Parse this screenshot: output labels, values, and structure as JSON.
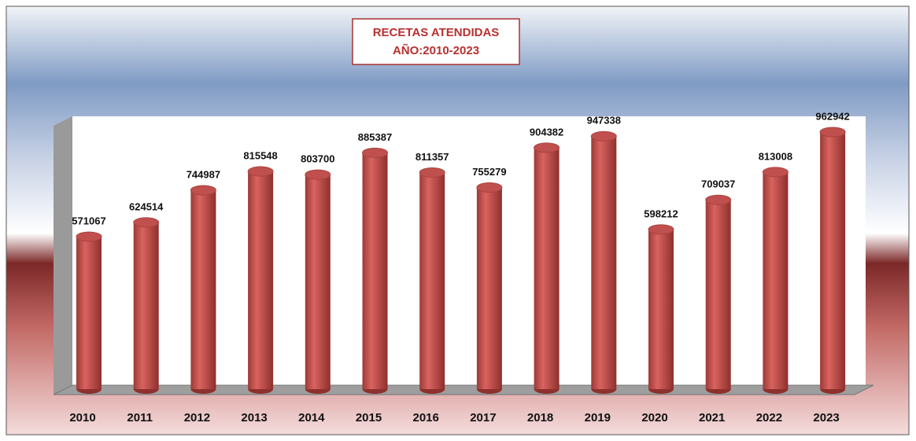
{
  "chart_data": {
    "type": "bar3d",
    "title": "RECETAS ATENDIDAS",
    "subtitle": "AÑO:2010-2023",
    "categories": [
      "2010",
      "2011",
      "2012",
      "2013",
      "2014",
      "2015",
      "2016",
      "2017",
      "2018",
      "2019",
      "2020",
      "2021",
      "2022",
      "2023"
    ],
    "values": [
      571067,
      624514,
      744987,
      815548,
      803700,
      885387,
      811357,
      755279,
      904382,
      947338,
      598212,
      709037,
      813008,
      962942
    ],
    "color": "#c0504d"
  }
}
